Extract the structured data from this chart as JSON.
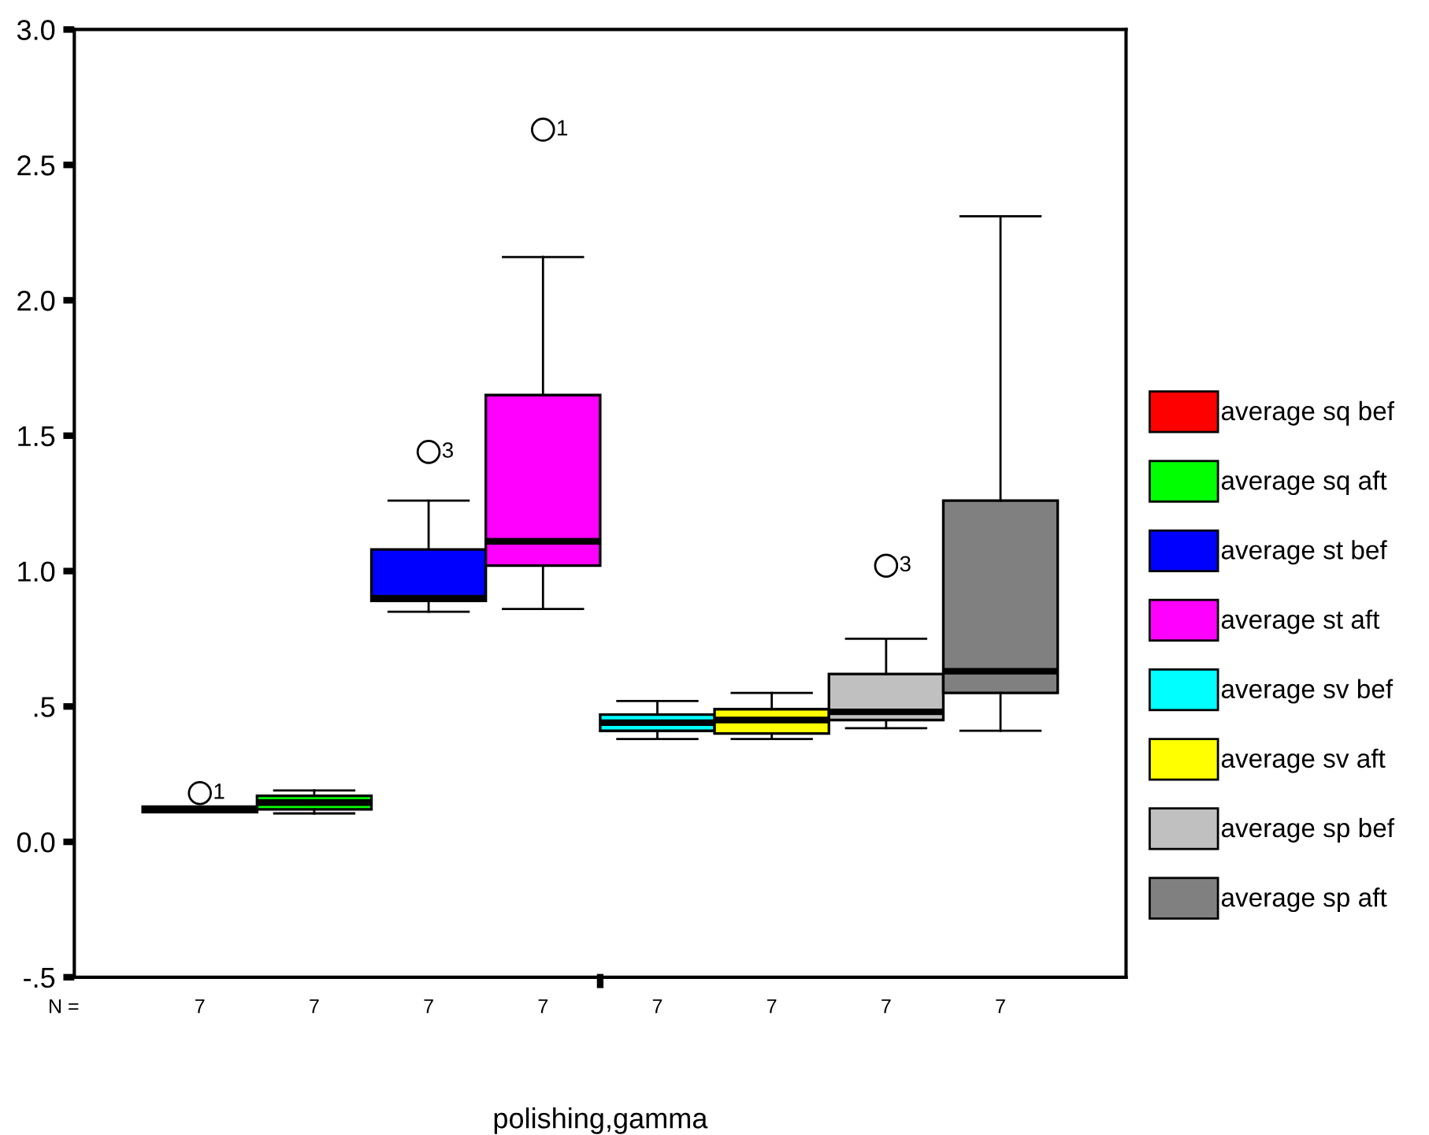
{
  "chart_data": {
    "type": "box",
    "categories": [
      null
    ],
    "xlabel": "polishing,gamma",
    "series": [
      {
        "name": "average sq bef",
        "color": "#ff0000",
        "boxes": [
          {
            "low": 0.11,
            "q1": 0.11,
            "median": 0.12,
            "q3": 0.13,
            "high": 0.13,
            "outliers": [
              0.18
            ]
          }
        ]
      },
      {
        "name": "average sq aft",
        "color": "#00ff00",
        "boxes": [
          {
            "low": 0.105,
            "q1": 0.12,
            "median": 0.145,
            "q3": 0.17,
            "high": 0.19
          }
        ]
      },
      {
        "name": "average st bef",
        "color": "#0000ff",
        "boxes": [
          {
            "low": 0.85,
            "q1": 0.89,
            "median": 0.9,
            "q3": 1.08,
            "high": 1.26,
            "outliers": [
              1.44
            ]
          }
        ]
      },
      {
        "name": "average st aft",
        "color": "#ff00ff",
        "boxes": [
          {
            "low": 0.86,
            "q1": 1.02,
            "median": 1.11,
            "q3": 1.65,
            "high": 2.16,
            "outliers": [
              2.63
            ]
          }
        ]
      },
      {
        "name": "average sv bef",
        "color": "#00ffff",
        "boxes": [
          {
            "low": 0.38,
            "q1": 0.41,
            "median": 0.44,
            "q3": 0.47,
            "high": 0.52
          }
        ]
      },
      {
        "name": "average sv aft",
        "color": "#ffff00",
        "boxes": [
          {
            "low": 0.38,
            "q1": 0.4,
            "median": 0.45,
            "q3": 0.49,
            "high": 0.55
          }
        ]
      },
      {
        "name": "average sp bef",
        "color": "#c0c0c0",
        "boxes": [
          {
            "low": 0.42,
            "q1": 0.45,
            "median": 0.48,
            "q3": 0.62,
            "high": 0.75,
            "outliers": [
              1.02
            ]
          }
        ]
      },
      {
        "name": "average sp aft",
        "color": "#808080",
        "boxes": [
          {
            "low": 0.41,
            "q1": 0.55,
            "median": 0.63,
            "q3": 1.26,
            "high": 2.31
          }
        ]
      }
    ],
    "ylim": [
      -0.5,
      3.0
    ],
    "yticks": [
      {
        "value": -0.5,
        "label": "-.5"
      },
      {
        "value": 0,
        "label": "0.0"
      },
      {
        "value": 0.5,
        "label": ".5"
      },
      {
        "value": 1.0,
        "label": "1.0"
      },
      {
        "value": 1.5,
        "label": "1.5"
      },
      {
        "value": 2.0,
        "label": "2.0"
      },
      {
        "value": 2.5,
        "label": "2.5"
      },
      {
        "value": 3.0,
        "label": "3.0"
      }
    ],
    "annotations": [
      "N =",
      "7",
      "7",
      "7",
      "7",
      "7",
      "7",
      "7",
      "7",
      "1",
      "3",
      "1",
      "3"
    ],
    "legend": "right",
    "grid": false,
    "marker": "circle"
  }
}
